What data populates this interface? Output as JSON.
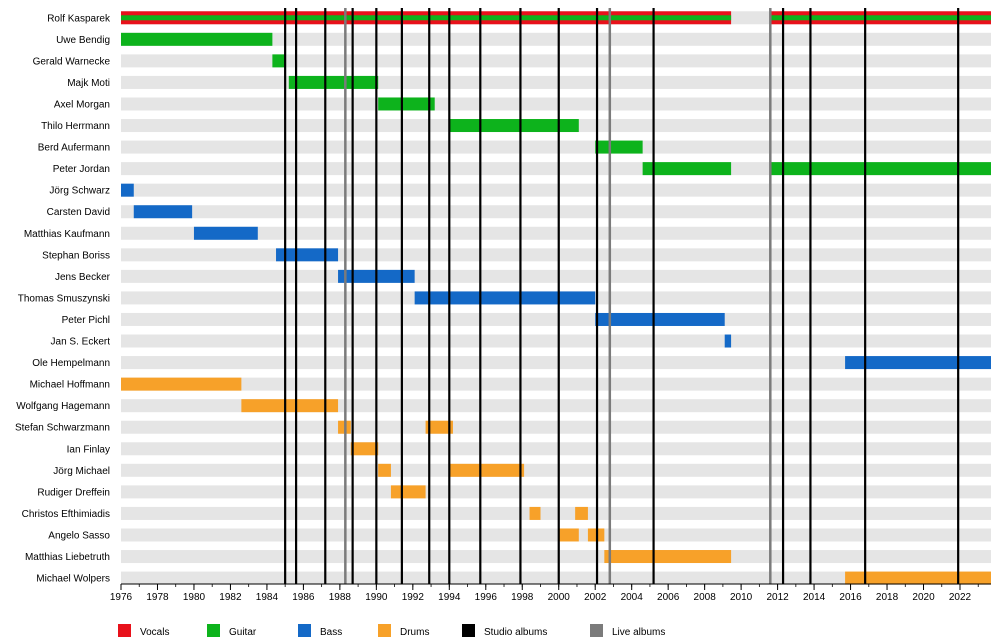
{
  "chart_data": {
    "type": "timeline",
    "x_axis": {
      "min": 1976,
      "max": 2023.7,
      "tick_labels": [
        "1976",
        "1978",
        "1980",
        "1982",
        "1984",
        "1986",
        "1988",
        "1990",
        "1992",
        "1994",
        "1996",
        "1998",
        "2000",
        "2002",
        "2004",
        "2006",
        "2008",
        "2010",
        "2012",
        "2014",
        "2016",
        "2018",
        "2020",
        "2022"
      ],
      "minor_tick_every": 1
    },
    "grid": "row bands",
    "colors": {
      "Vocals": "#e8111b",
      "Guitar": "#0db31c",
      "Bass": "#1469c7",
      "Drums": "#f7a129",
      "Studio albums": "#000000",
      "Live albums": "#7b7b7b",
      "row_band": "#e5e5e5"
    },
    "members": [
      {
        "name": "Rolf Kasparek",
        "spans": [
          {
            "role": "Vocals",
            "start": 1976,
            "end": 2009.45
          },
          {
            "role": "Guitar",
            "start": 1976,
            "end": 2009.45
          },
          {
            "role": "Vocals",
            "start": 2011.6,
            "end": 2023.7
          },
          {
            "role": "Guitar",
            "start": 2011.6,
            "end": 2023.7
          }
        ]
      },
      {
        "name": "Uwe Bendig",
        "spans": [
          {
            "role": "Guitar",
            "start": 1976,
            "end": 1984.3
          }
        ]
      },
      {
        "name": "Gerald Warnecke",
        "spans": [
          {
            "role": "Guitar",
            "start": 1984.3,
            "end": 1985.0
          }
        ]
      },
      {
        "name": "Majk Moti",
        "spans": [
          {
            "role": "Guitar",
            "start": 1985.2,
            "end": 1990.1
          }
        ]
      },
      {
        "name": "Axel Morgan",
        "spans": [
          {
            "role": "Guitar",
            "start": 1990.1,
            "end": 1993.2
          }
        ]
      },
      {
        "name": "Thilo Herrmann",
        "spans": [
          {
            "role": "Guitar",
            "start": 1994.0,
            "end": 2001.1
          }
        ]
      },
      {
        "name": "Berd Aufermann",
        "spans": [
          {
            "role": "Guitar",
            "start": 2002.0,
            "end": 2004.6
          }
        ]
      },
      {
        "name": "Peter Jordan",
        "spans": [
          {
            "role": "Guitar",
            "start": 2004.6,
            "end": 2009.45
          },
          {
            "role": "Guitar",
            "start": 2011.6,
            "end": 2023.7
          }
        ]
      },
      {
        "name": "Jörg Schwarz",
        "spans": [
          {
            "role": "Bass",
            "start": 1976,
            "end": 1976.7
          }
        ]
      },
      {
        "name": "Carsten David",
        "spans": [
          {
            "role": "Bass",
            "start": 1976.7,
            "end": 1979.9
          }
        ]
      },
      {
        "name": "Matthias Kaufmann",
        "spans": [
          {
            "role": "Bass",
            "start": 1980.0,
            "end": 1983.5
          }
        ]
      },
      {
        "name": "Stephan Boriss",
        "spans": [
          {
            "role": "Bass",
            "start": 1984.5,
            "end": 1987.9
          }
        ]
      },
      {
        "name": "Jens Becker",
        "spans": [
          {
            "role": "Bass",
            "start": 1987.9,
            "end": 1992.1
          }
        ]
      },
      {
        "name": "Thomas Smuszynski",
        "spans": [
          {
            "role": "Bass",
            "start": 1992.1,
            "end": 2002.0
          }
        ]
      },
      {
        "name": "Peter Pichl",
        "spans": [
          {
            "role": "Bass",
            "start": 2002.0,
            "end": 2009.1
          }
        ]
      },
      {
        "name": "Jan S. Eckert",
        "spans": [
          {
            "role": "Bass",
            "start": 2009.1,
            "end": 2009.45
          }
        ]
      },
      {
        "name": "Ole Hempelmann",
        "spans": [
          {
            "role": "Bass",
            "start": 2015.7,
            "end": 2023.7
          }
        ]
      },
      {
        "name": "Michael Hoffmann",
        "spans": [
          {
            "role": "Drums",
            "start": 1976,
            "end": 1982.6
          }
        ]
      },
      {
        "name": "Wolfgang Hagemann",
        "spans": [
          {
            "role": "Drums",
            "start": 1982.6,
            "end": 1987.9
          }
        ]
      },
      {
        "name": "Stefan Schwarzmann",
        "spans": [
          {
            "role": "Drums",
            "start": 1987.9,
            "end": 1988.6
          },
          {
            "role": "Drums",
            "start": 1992.7,
            "end": 1994.2
          }
        ]
      },
      {
        "name": "Ian Finlay",
        "spans": [
          {
            "role": "Drums",
            "start": 1988.6,
            "end": 1990.1
          }
        ]
      },
      {
        "name": "Jörg Michael",
        "spans": [
          {
            "role": "Drums",
            "start": 1990.1,
            "end": 1990.8
          },
          {
            "role": "Drums",
            "start": 1994.0,
            "end": 1998.1
          }
        ]
      },
      {
        "name": "Rudiger Dreffein",
        "spans": [
          {
            "role": "Drums",
            "start": 1990.8,
            "end": 1992.7
          }
        ]
      },
      {
        "name": "Christos Efthimiadis",
        "spans": [
          {
            "role": "Drums",
            "start": 1998.4,
            "end": 1999.0
          },
          {
            "role": "Drums",
            "start": 2000.9,
            "end": 2001.6
          }
        ]
      },
      {
        "name": "Angelo Sasso",
        "spans": [
          {
            "role": "Drums",
            "start": 2000.0,
            "end": 2001.1
          },
          {
            "role": "Drums",
            "start": 2001.6,
            "end": 2002.5
          }
        ]
      },
      {
        "name": "Matthias Liebetruth",
        "spans": [
          {
            "role": "Drums",
            "start": 2002.5,
            "end": 2009.45
          }
        ]
      },
      {
        "name": "Michael Wolpers",
        "spans": [
          {
            "role": "Drums",
            "start": 2015.7,
            "end": 2023.7
          }
        ]
      }
    ],
    "studio_albums": [
      1985.0,
      1985.6,
      1987.2,
      1988.7,
      1990.0,
      1991.4,
      1992.9,
      1994.0,
      1995.7,
      1997.9,
      2000.0,
      2002.1,
      2005.2,
      2012.3,
      2013.8,
      2016.8,
      2021.9
    ],
    "live_albums": [
      1988.3,
      2002.8,
      2011.6
    ],
    "legend": [
      {
        "label": "Vocals",
        "kind": "Vocals"
      },
      {
        "label": "Guitar",
        "kind": "Guitar"
      },
      {
        "label": "Bass",
        "kind": "Bass"
      },
      {
        "label": "Drums",
        "kind": "Drums"
      },
      {
        "label": "Studio albums",
        "kind": "Studio albums"
      },
      {
        "label": "Live albums",
        "kind": "Live albums"
      }
    ],
    "legend_position": "bottom"
  }
}
